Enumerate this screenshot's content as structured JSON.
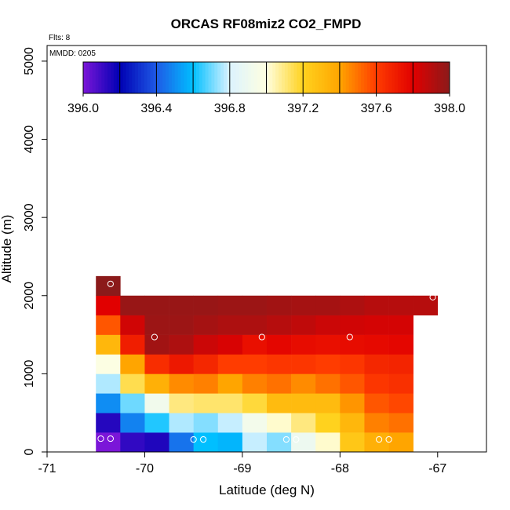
{
  "chart_data": {
    "type": "heatmap",
    "title": "ORCAS RF08miz2 CO2_FMPD",
    "annotations": {
      "flights": "Flts: 8",
      "date": "MMDD: 0205"
    },
    "xlabel": "Latitude (deg N)",
    "ylabel": "Altitude (m)",
    "xlim": [
      -71,
      -66.5
    ],
    "ylim": [
      0,
      5200
    ],
    "xticks": [
      -71,
      -70,
      -69,
      -68,
      -67
    ],
    "xtick_labels": [
      "-71",
      "-70",
      "-69",
      "-68",
      "-67"
    ],
    "yticks": [
      0,
      1000,
      2000,
      3000,
      4000,
      5000
    ],
    "ytick_labels": [
      "0",
      "1000",
      "2000",
      "3000",
      "4000",
      "5000"
    ],
    "colorbar": {
      "range": [
        396.0,
        398.0
      ],
      "ticks": [
        396.0,
        396.4,
        396.8,
        397.2,
        397.6,
        398.0
      ],
      "tick_labels": [
        "396.0",
        "396.4",
        "396.8",
        "397.2",
        "397.6",
        "398.0"
      ],
      "stops": [
        "#7b16d8",
        "#0000b3",
        "#1e5ae6",
        "#00bfff",
        "#dcf3ff",
        "#ffffe0",
        "#ffd21e",
        "#ffa500",
        "#ff3c00",
        "#e10000",
        "#8b1a1a"
      ]
    },
    "cells": {
      "lat_edges": [
        -70.5,
        -70.25,
        -70.0,
        -69.75,
        -69.5,
        -69.25,
        -69.0,
        -68.75,
        -68.5,
        -68.25,
        -68.0,
        -67.75,
        -67.5,
        -67.25,
        -67.0
      ],
      "alt_bins": [
        {
          "bottom": 0,
          "top": 250,
          "values": [
            396.0,
            396.12,
            396.15,
            396.45,
            396.6,
            396.58,
            396.78,
            396.72,
            396.9,
            397.02,
            397.25,
            397.35,
            397.4
          ]
        },
        {
          "bottom": 250,
          "top": 500,
          "values": [
            396.14,
            396.48,
            396.63,
            396.76,
            396.72,
            396.78,
            396.93,
            397.02,
            397.1,
            397.2,
            397.32,
            397.47,
            397.5
          ]
        },
        {
          "bottom": 500,
          "top": 750,
          "values": [
            396.5,
            396.7,
            396.92,
            397.1,
            397.12,
            397.12,
            397.17,
            397.3,
            397.3,
            397.3,
            397.43,
            397.55,
            397.58
          ]
        },
        {
          "bottom": 750,
          "top": 1000,
          "values": [
            396.76,
            397.15,
            397.35,
            397.45,
            397.47,
            397.4,
            397.47,
            397.5,
            397.45,
            397.5,
            397.55,
            397.62,
            397.64
          ]
        },
        {
          "bottom": 1000,
          "top": 1250,
          "values": [
            396.98,
            397.4,
            397.65,
            397.72,
            397.67,
            397.6,
            397.6,
            397.62,
            397.62,
            397.6,
            397.62,
            397.67,
            397.68
          ]
        },
        {
          "bottom": 1250,
          "top": 1500,
          "values": [
            397.32,
            397.7,
            397.95,
            397.92,
            397.85,
            397.82,
            397.75,
            397.78,
            397.76,
            397.75,
            397.76,
            397.77,
            397.78
          ]
        },
        {
          "bottom": 1500,
          "top": 1750,
          "values": [
            397.55,
            397.84,
            397.96,
            397.96,
            397.94,
            397.92,
            397.92,
            397.9,
            397.88,
            397.85,
            397.84,
            397.83,
            397.83
          ]
        },
        {
          "bottom": 1750,
          "top": 2000,
          "values": [
            397.8,
            397.97,
            397.97,
            397.97,
            397.97,
            397.96,
            397.96,
            397.95,
            397.94,
            397.94,
            397.92,
            397.9,
            397.9,
            397.9
          ]
        },
        {
          "bottom": 2000,
          "top": 2250,
          "values": [
            398.0
          ]
        }
      ]
    },
    "flight_points": [
      {
        "lat": -70.45,
        "alt": 170
      },
      {
        "lat": -70.35,
        "alt": 170
      },
      {
        "lat": -69.5,
        "alt": 160
      },
      {
        "lat": -69.4,
        "alt": 160
      },
      {
        "lat": -68.55,
        "alt": 160
      },
      {
        "lat": -68.45,
        "alt": 160
      },
      {
        "lat": -67.6,
        "alt": 160
      },
      {
        "lat": -67.5,
        "alt": 160
      },
      {
        "lat": -70.35,
        "alt": 2150
      },
      {
        "lat": -69.9,
        "alt": 1470
      },
      {
        "lat": -68.8,
        "alt": 1470
      },
      {
        "lat": -67.9,
        "alt": 1470
      },
      {
        "lat": -67.05,
        "alt": 1980
      }
    ]
  }
}
